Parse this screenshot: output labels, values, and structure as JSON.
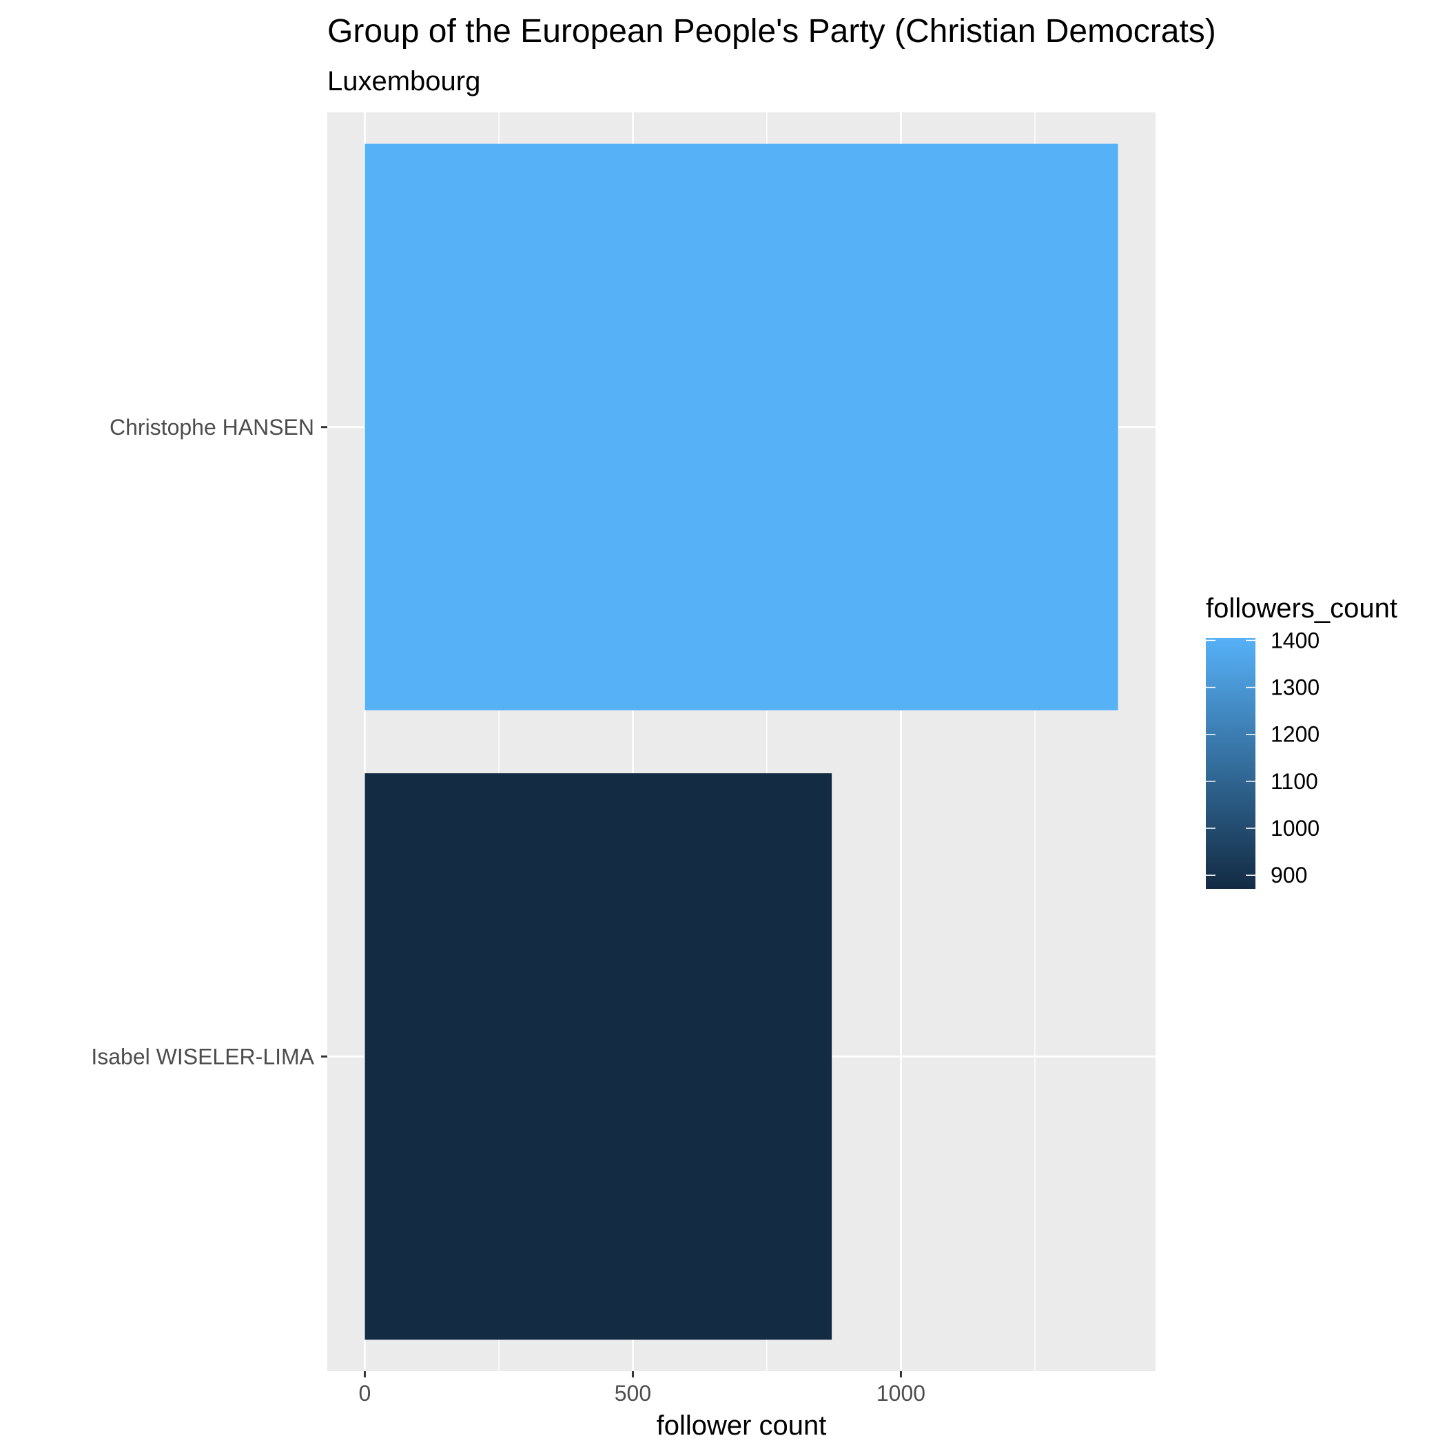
{
  "chart_data": {
    "type": "bar",
    "orientation": "horizontal",
    "title": "Group of the European People's Party (Christian Democrats)",
    "subtitle": "Luxembourg",
    "xlabel": "follower count",
    "ylabel": "",
    "categories": [
      "Christophe HANSEN",
      "Isabel WISELER-LIMA"
    ],
    "values": [
      1405,
      871
    ],
    "xlim": [
      -70,
      1475
    ],
    "x_ticks": [
      0,
      500,
      1000
    ],
    "x_tick_labels": [
      "0",
      "500",
      "1000"
    ],
    "grid": true,
    "legend": {
      "title": "followers_count",
      "placement": "right",
      "range": [
        871,
        1405
      ],
      "ticks": [
        1400,
        1300,
        1200,
        1100,
        1000,
        900
      ],
      "tick_labels": [
        "1400",
        "1300",
        "1200",
        "1100",
        "1000",
        "900"
      ],
      "color_low": "#132B43",
      "color_high": "#56B1F7"
    },
    "panel_color": "#EBEBEB",
    "grid_color": "#FFFFFF"
  }
}
